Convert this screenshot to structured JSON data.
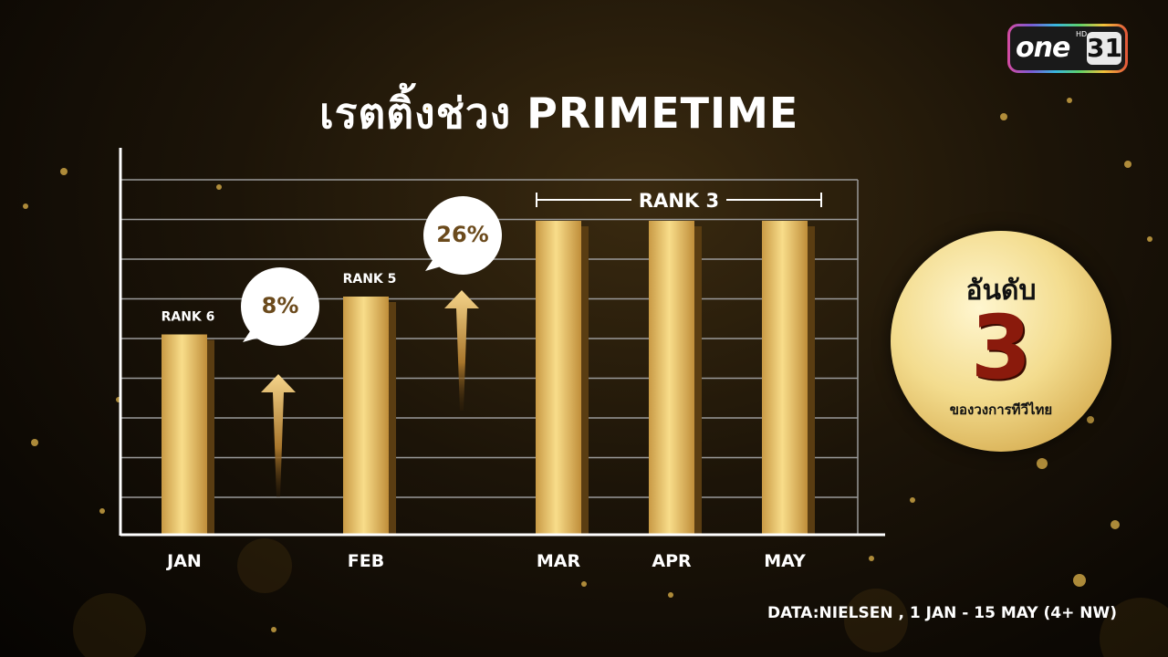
{
  "title": "เรตติ้งช่วง PRIMETIME",
  "logo": {
    "brand": "one",
    "hd": "HD",
    "channel": "31"
  },
  "chart_data": {
    "type": "bar",
    "categories": [
      "JAN",
      "FEB",
      "MAR",
      "APR",
      "MAY"
    ],
    "values": [
      6,
      5,
      3,
      3,
      3
    ],
    "value_meaning": "rank",
    "bar_labels": [
      "RANK 6",
      "RANK 5",
      "",
      "",
      ""
    ],
    "group_label": {
      "text": "RANK 3",
      "from": "MAR",
      "to": "MAY"
    },
    "growth": [
      {
        "between": [
          "JAN",
          "FEB"
        ],
        "label": "8%"
      },
      {
        "between": [
          "FEB",
          "MAR"
        ],
        "label": "26%"
      }
    ],
    "grid": true
  },
  "badge": {
    "top": "อันดับ",
    "number": "3",
    "bottom": "ของวงการทีวีไทย"
  },
  "source": "DATA:NIELSEN , 1 JAN - 15 MAY (4+ NW)",
  "colors": {
    "gold_light": "#f3d27a",
    "gold_dark": "#b8862f",
    "bubble_text": "#6b4a1c"
  }
}
